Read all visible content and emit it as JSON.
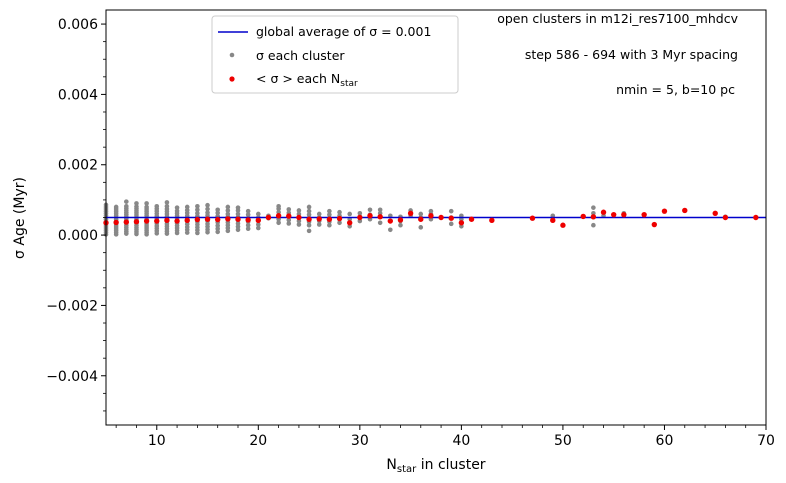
{
  "chart_data": {
    "type": "scatter",
    "xlabel": "N",
    "xlabel_sub": "star",
    "xlabel_suffix": " in cluster",
    "ylabel": "σ Age (Myr)",
    "xlim": [
      5,
      70
    ],
    "ylim": [
      -0.0054,
      0.0064
    ],
    "x_ticks": [
      10,
      20,
      30,
      40,
      50,
      60,
      70
    ],
    "y_ticks": [
      -0.004,
      -0.002,
      0.0,
      0.002,
      0.004,
      0.006
    ],
    "y_tick_labels": [
      "−0.004",
      "−0.002",
      "0.000",
      "0.002",
      "0.004",
      "0.006"
    ],
    "grid": false,
    "legend_position": "top-center",
    "annotations": [
      "open clusters in m12i_res7100_mhdcv",
      "step 586 - 694 with 3 Myr spacing",
      "nmin = 5, b=10 pc"
    ],
    "global_average": {
      "label": "global average of σ = 0.001",
      "value": 0.0005,
      "color": "#0000cc"
    },
    "series": [
      {
        "name": "σ each cluster",
        "color": "#888888",
        "points": [
          [
            5,
            2e-05
          ],
          [
            5,
            8e-05
          ],
          [
            5,
            0.00014
          ],
          [
            5,
            0.0002
          ],
          [
            5,
            0.00026
          ],
          [
            5,
            0.00032
          ],
          [
            5,
            0.00038
          ],
          [
            5,
            0.00044
          ],
          [
            5,
            0.0005
          ],
          [
            5,
            0.00056
          ],
          [
            5,
            0.00062
          ],
          [
            5,
            0.00068
          ],
          [
            5,
            0.00074
          ],
          [
            5,
            0.0008
          ],
          [
            5,
            0.00086
          ],
          [
            6,
            2e-05
          ],
          [
            6,
            8e-05
          ],
          [
            6,
            0.00014
          ],
          [
            6,
            0.0002
          ],
          [
            6,
            0.00026
          ],
          [
            6,
            0.00032
          ],
          [
            6,
            0.00038
          ],
          [
            6,
            0.00044
          ],
          [
            6,
            0.0005
          ],
          [
            6,
            0.00056
          ],
          [
            6,
            0.00062
          ],
          [
            6,
            0.00068
          ],
          [
            6,
            0.00074
          ],
          [
            6,
            0.0008
          ],
          [
            7,
            4e-05
          ],
          [
            7,
            0.0001
          ],
          [
            7,
            0.00016
          ],
          [
            7,
            0.00022
          ],
          [
            7,
            0.00028
          ],
          [
            7,
            0.00034
          ],
          [
            7,
            0.0004
          ],
          [
            7,
            0.00046
          ],
          [
            7,
            0.00052
          ],
          [
            7,
            0.00058
          ],
          [
            7,
            0.00064
          ],
          [
            7,
            0.0007
          ],
          [
            7,
            0.00076
          ],
          [
            7,
            0.00082
          ],
          [
            7,
            0.00095
          ],
          [
            8,
            3e-05
          ],
          [
            8,
            9e-05
          ],
          [
            8,
            0.00015
          ],
          [
            8,
            0.00021
          ],
          [
            8,
            0.00027
          ],
          [
            8,
            0.00033
          ],
          [
            8,
            0.00039
          ],
          [
            8,
            0.00045
          ],
          [
            8,
            0.00051
          ],
          [
            8,
            0.00057
          ],
          [
            8,
            0.00063
          ],
          [
            8,
            0.00069
          ],
          [
            8,
            0.00075
          ],
          [
            8,
            0.00081
          ],
          [
            8,
            0.0009
          ],
          [
            9,
            2e-05
          ],
          [
            9,
            8e-05
          ],
          [
            9,
            0.00014
          ],
          [
            9,
            0.0002
          ],
          [
            9,
            0.00026
          ],
          [
            9,
            0.00032
          ],
          [
            9,
            0.00038
          ],
          [
            9,
            0.00044
          ],
          [
            9,
            0.0005
          ],
          [
            9,
            0.00056
          ],
          [
            9,
            0.00062
          ],
          [
            9,
            0.00068
          ],
          [
            9,
            0.00074
          ],
          [
            9,
            0.0008
          ],
          [
            9,
            0.0009
          ],
          [
            10,
            5e-05
          ],
          [
            10,
            0.00012
          ],
          [
            10,
            0.00019
          ],
          [
            10,
            0.00026
          ],
          [
            10,
            0.00033
          ],
          [
            10,
            0.0004
          ],
          [
            10,
            0.00047
          ],
          [
            10,
            0.00054
          ],
          [
            10,
            0.00061
          ],
          [
            10,
            0.00068
          ],
          [
            10,
            0.00075
          ],
          [
            10,
            0.00082
          ],
          [
            11,
            4e-05
          ],
          [
            11,
            0.00011
          ],
          [
            11,
            0.00018
          ],
          [
            11,
            0.00025
          ],
          [
            11,
            0.00032
          ],
          [
            11,
            0.00039
          ],
          [
            11,
            0.00046
          ],
          [
            11,
            0.00053
          ],
          [
            11,
            0.0006
          ],
          [
            11,
            0.00067
          ],
          [
            11,
            0.00074
          ],
          [
            11,
            0.00082
          ],
          [
            11,
            0.00093
          ],
          [
            12,
            6e-05
          ],
          [
            12,
            0.00013
          ],
          [
            12,
            0.0002
          ],
          [
            12,
            0.00027
          ],
          [
            12,
            0.00034
          ],
          [
            12,
            0.00041
          ],
          [
            12,
            0.00048
          ],
          [
            12,
            0.00055
          ],
          [
            12,
            0.00062
          ],
          [
            12,
            0.00069
          ],
          [
            12,
            0.00078
          ],
          [
            13,
            7e-05
          ],
          [
            13,
            0.00015
          ],
          [
            13,
            0.00023
          ],
          [
            13,
            0.00031
          ],
          [
            13,
            0.00039
          ],
          [
            13,
            0.00047
          ],
          [
            13,
            0.00055
          ],
          [
            13,
            0.00063
          ],
          [
            13,
            0.00071
          ],
          [
            13,
            0.0008
          ],
          [
            14,
            6e-05
          ],
          [
            14,
            0.00014
          ],
          [
            14,
            0.00022
          ],
          [
            14,
            0.0003
          ],
          [
            14,
            0.00038
          ],
          [
            14,
            0.00046
          ],
          [
            14,
            0.00054
          ],
          [
            14,
            0.00062
          ],
          [
            14,
            0.00072
          ],
          [
            14,
            0.00082
          ],
          [
            15,
            8e-05
          ],
          [
            15,
            0.00016
          ],
          [
            15,
            0.00024
          ],
          [
            15,
            0.00032
          ],
          [
            15,
            0.0004
          ],
          [
            15,
            0.00048
          ],
          [
            15,
            0.00056
          ],
          [
            15,
            0.00064
          ],
          [
            15,
            0.00074
          ],
          [
            15,
            0.00085
          ],
          [
            16,
            9e-05
          ],
          [
            16,
            0.00018
          ],
          [
            16,
            0.00027
          ],
          [
            16,
            0.00036
          ],
          [
            16,
            0.00045
          ],
          [
            16,
            0.00054
          ],
          [
            16,
            0.00063
          ],
          [
            16,
            0.00072
          ],
          [
            17,
            0.00012
          ],
          [
            17,
            0.0002
          ],
          [
            17,
            0.00028
          ],
          [
            17,
            0.00036
          ],
          [
            17,
            0.00044
          ],
          [
            17,
            0.00052
          ],
          [
            17,
            0.0006
          ],
          [
            17,
            0.0007
          ],
          [
            17,
            0.0008
          ],
          [
            18,
            0.00015
          ],
          [
            18,
            0.00024
          ],
          [
            18,
            0.00033
          ],
          [
            18,
            0.00042
          ],
          [
            18,
            0.00051
          ],
          [
            18,
            0.0006
          ],
          [
            18,
            0.0007
          ],
          [
            18,
            0.00078
          ],
          [
            19,
            0.00018
          ],
          [
            19,
            0.00028
          ],
          [
            19,
            0.00038
          ],
          [
            19,
            0.00048
          ],
          [
            19,
            0.00058
          ],
          [
            19,
            0.00068
          ],
          [
            20,
            0.0002
          ],
          [
            20,
            0.0003
          ],
          [
            20,
            0.0004
          ],
          [
            20,
            0.0005
          ],
          [
            20,
            0.0006
          ],
          [
            21,
            0.00048
          ],
          [
            21,
            0.00055
          ],
          [
            22,
            0.00035
          ],
          [
            22,
            0.00045
          ],
          [
            22,
            0.00055
          ],
          [
            22,
            0.00065
          ],
          [
            22,
            0.00075
          ],
          [
            22,
            0.00082
          ],
          [
            23,
            0.00033
          ],
          [
            23,
            0.00043
          ],
          [
            23,
            0.00053
          ],
          [
            23,
            0.00063
          ],
          [
            23,
            0.00073
          ],
          [
            24,
            0.0003
          ],
          [
            24,
            0.0004
          ],
          [
            24,
            0.0005
          ],
          [
            24,
            0.0006
          ],
          [
            24,
            0.0007
          ],
          [
            25,
            0.00012
          ],
          [
            25,
            0.00028
          ],
          [
            25,
            0.00038
          ],
          [
            25,
            0.00048
          ],
          [
            25,
            0.00058
          ],
          [
            25,
            0.00068
          ],
          [
            25,
            0.0008
          ],
          [
            26,
            0.0003
          ],
          [
            26,
            0.0004
          ],
          [
            26,
            0.0005
          ],
          [
            26,
            0.0006
          ],
          [
            27,
            0.00028
          ],
          [
            27,
            0.00038
          ],
          [
            27,
            0.00048
          ],
          [
            27,
            0.00058
          ],
          [
            27,
            0.00068
          ],
          [
            28,
            0.00035
          ],
          [
            28,
            0.00045
          ],
          [
            28,
            0.00055
          ],
          [
            28,
            0.00065
          ],
          [
            29,
            0.00025
          ],
          [
            29,
            0.00045
          ],
          [
            29,
            0.0006
          ],
          [
            30,
            0.0004
          ],
          [
            30,
            0.00052
          ],
          [
            30,
            0.00062
          ],
          [
            31,
            0.00045
          ],
          [
            31,
            0.00058
          ],
          [
            31,
            0.00072
          ],
          [
            32,
            0.00035
          ],
          [
            32,
            0.00052
          ],
          [
            32,
            0.00062
          ],
          [
            32,
            0.00072
          ],
          [
            33,
            0.00015
          ],
          [
            33,
            0.0004
          ],
          [
            33,
            0.00055
          ],
          [
            34,
            0.00028
          ],
          [
            34,
            0.0004
          ],
          [
            34,
            0.00052
          ],
          [
            35,
            0.00055
          ],
          [
            35,
            0.0007
          ],
          [
            36,
            0.00022
          ],
          [
            36,
            0.0005
          ],
          [
            36,
            0.0006
          ],
          [
            37,
            0.00045
          ],
          [
            37,
            0.0006
          ],
          [
            37,
            0.00068
          ],
          [
            38,
            0.0005
          ],
          [
            39,
            0.00032
          ],
          [
            39,
            0.0005
          ],
          [
            39,
            0.00068
          ],
          [
            40,
            0.00025
          ],
          [
            40,
            0.00045
          ],
          [
            40,
            0.00055
          ],
          [
            41,
            0.00045
          ],
          [
            49,
            0.00045
          ],
          [
            49,
            0.00055
          ],
          [
            53,
            0.00028
          ],
          [
            53,
            0.00062
          ],
          [
            53,
            0.00078
          ],
          [
            54,
            0.00055
          ],
          [
            56,
            0.00055
          ],
          [
            56,
            0.00062
          ],
          [
            66,
            0.00052
          ]
        ]
      },
      {
        "name": "< σ > each N",
        "name_sub": "star",
        "color": "#ee0000",
        "points": [
          [
            5,
            0.00035
          ],
          [
            6,
            0.00036
          ],
          [
            7,
            0.00037
          ],
          [
            8,
            0.00038
          ],
          [
            9,
            0.0004
          ],
          [
            10,
            0.0004
          ],
          [
            11,
            0.00042
          ],
          [
            12,
            0.0004
          ],
          [
            13,
            0.00042
          ],
          [
            14,
            0.00044
          ],
          [
            15,
            0.00045
          ],
          [
            16,
            0.00044
          ],
          [
            17,
            0.00046
          ],
          [
            18,
            0.00045
          ],
          [
            19,
            0.00043
          ],
          [
            20,
            0.00042
          ],
          [
            21,
            0.0005
          ],
          [
            22,
            0.00055
          ],
          [
            23,
            0.00054
          ],
          [
            24,
            0.0005
          ],
          [
            25,
            0.00045
          ],
          [
            26,
            0.00046
          ],
          [
            27,
            0.00045
          ],
          [
            28,
            0.00047
          ],
          [
            29,
            0.00035
          ],
          [
            30,
            0.0005
          ],
          [
            31,
            0.00055
          ],
          [
            32,
            0.00052
          ],
          [
            33,
            0.0004
          ],
          [
            34,
            0.00043
          ],
          [
            35,
            0.00062
          ],
          [
            36,
            0.00045
          ],
          [
            37,
            0.00055
          ],
          [
            38,
            0.0005
          ],
          [
            39,
            0.00048
          ],
          [
            40,
            0.00035
          ],
          [
            41,
            0.00045
          ],
          [
            43,
            0.00042
          ],
          [
            47,
            0.00048
          ],
          [
            49,
            0.00042
          ],
          [
            50,
            0.00028
          ],
          [
            52,
            0.00053
          ],
          [
            53,
            0.00052
          ],
          [
            54,
            0.00065
          ],
          [
            55,
            0.00058
          ],
          [
            56,
            0.00058
          ],
          [
            58,
            0.00058
          ],
          [
            59,
            0.0003
          ],
          [
            60,
            0.00068
          ],
          [
            62,
            0.0007
          ],
          [
            65,
            0.00062
          ],
          [
            66,
            0.0005
          ],
          [
            69,
            0.0005
          ]
        ]
      }
    ]
  }
}
